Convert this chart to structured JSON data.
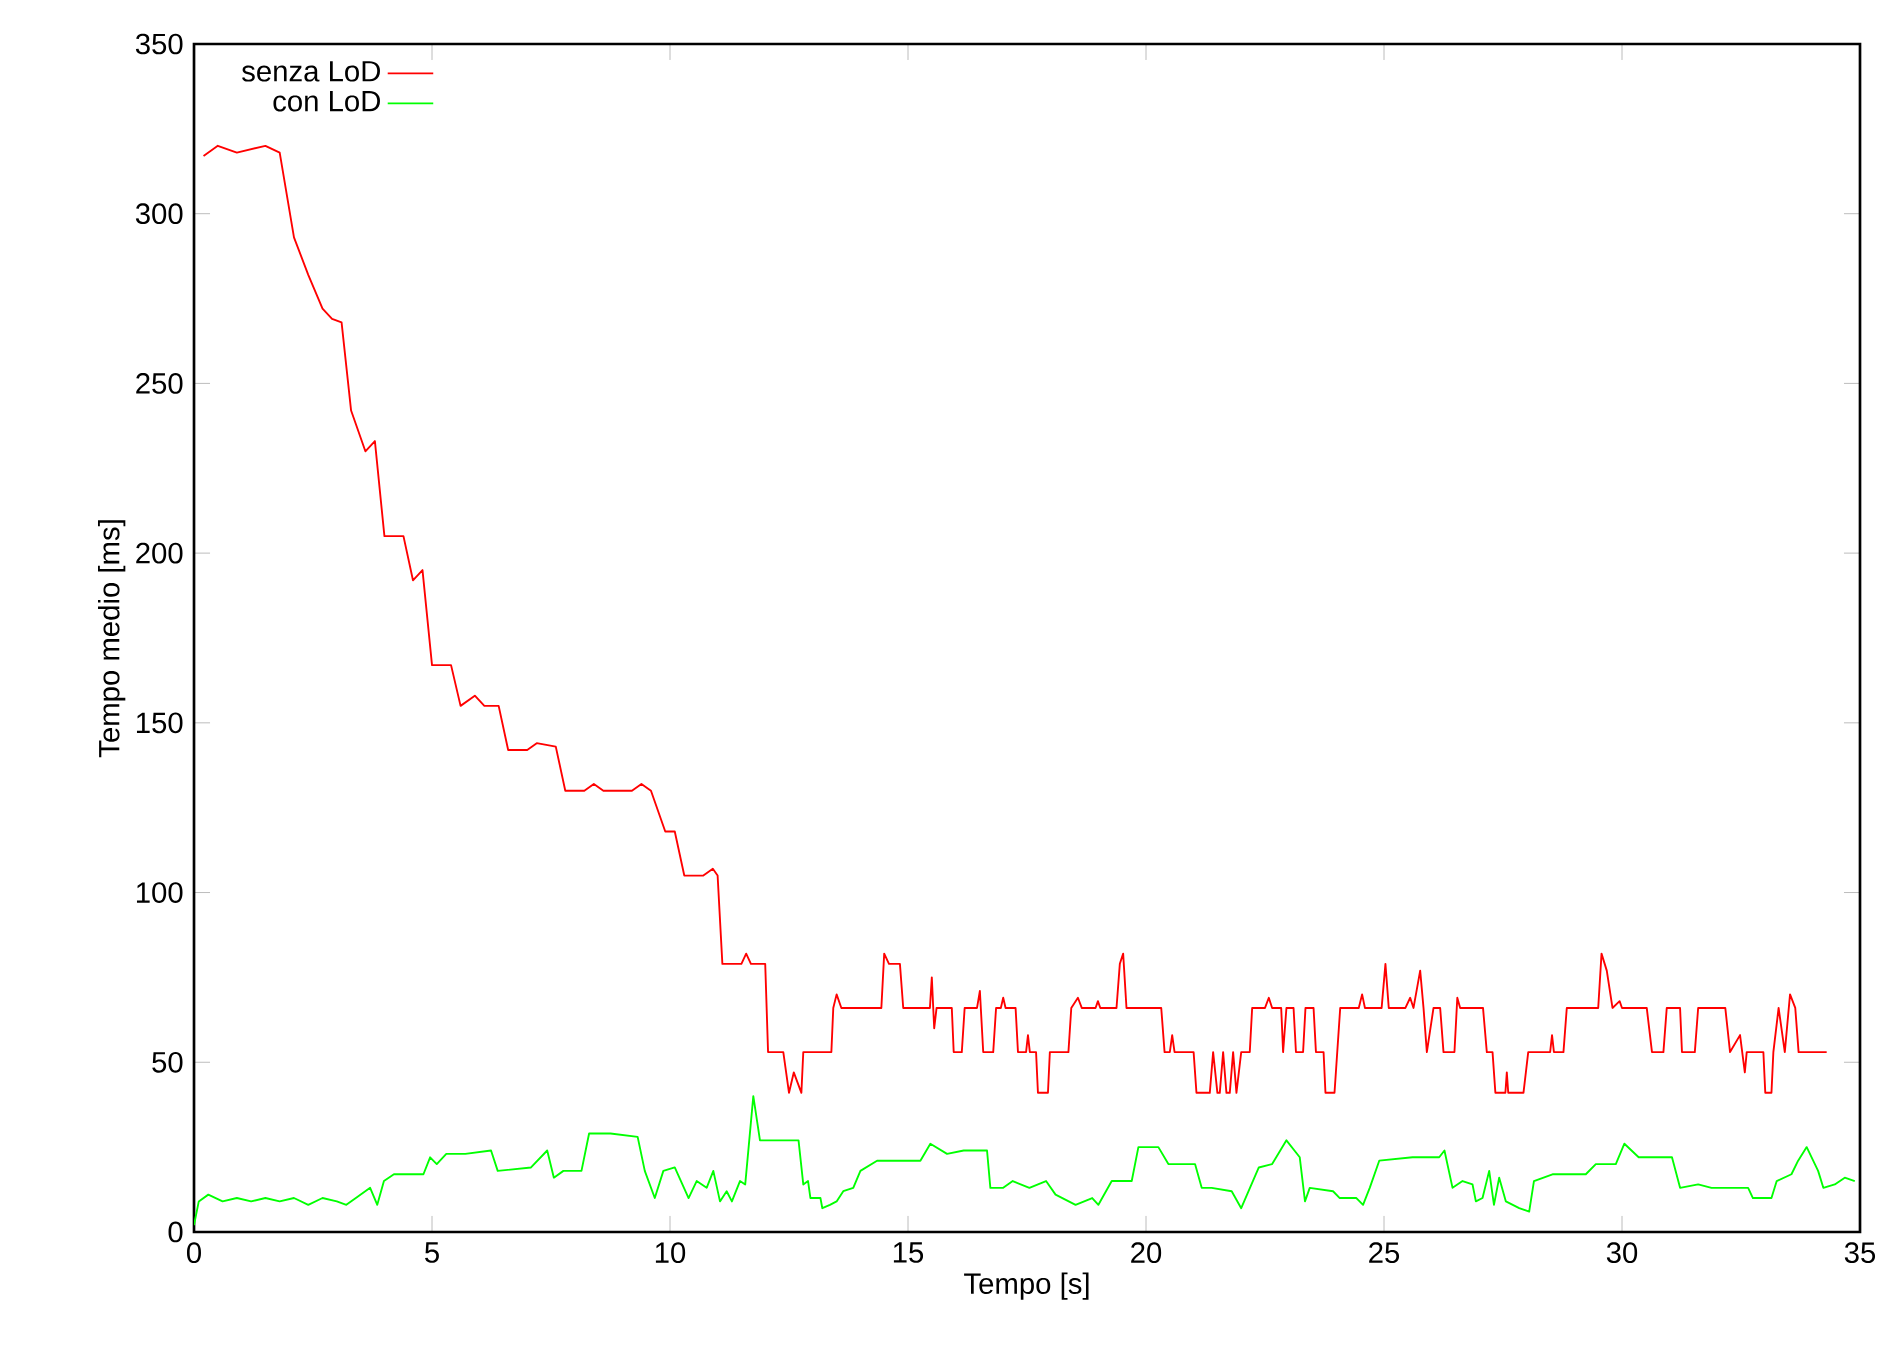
{
  "chart_data": {
    "type": "line",
    "xlabel": "Tempo [s]",
    "ylabel": "Tempo medio [ms]",
    "xlim": [
      0,
      35
    ],
    "ylim": [
      0,
      350
    ],
    "xticks": [
      0,
      5,
      10,
      15,
      20,
      25,
      30,
      35
    ],
    "yticks": [
      0,
      50,
      100,
      150,
      200,
      250,
      300,
      350
    ],
    "legend": "top left",
    "grid": false,
    "line_style": "solid",
    "marker": "none",
    "series": [
      {
        "name": "senza LoD",
        "color": "#ff0000",
        "x": [
          0.2,
          0.5,
          0.9,
          1.5,
          1.8,
          2.1,
          2.4,
          2.7,
          2.9,
          3.1,
          3.3,
          3.6,
          3.8,
          4.0,
          4.4,
          4.6,
          4.8,
          5.0,
          5.4,
          5.6,
          5.9,
          6.1,
          6.4,
          6.6,
          7.0,
          7.2,
          7.6,
          7.8,
          8.2,
          8.4,
          8.6,
          9.2,
          9.4,
          9.6,
          9.9,
          10.1,
          10.3,
          10.7,
          10.9,
          11.0,
          11.1,
          11.5,
          11.6,
          11.7,
          12.0,
          12.06,
          12.38,
          12.5,
          12.6,
          12.76,
          12.8,
          13.39,
          13.43,
          13.5,
          13.6,
          14.44,
          14.5,
          14.6,
          14.83,
          14.9,
          15.46,
          15.5,
          15.55,
          15.6,
          15.92,
          15.96,
          16.13,
          16.19,
          16.45,
          16.51,
          16.58,
          16.79,
          16.85,
          16.95,
          17.0,
          17.05,
          17.26,
          17.31,
          17.48,
          17.52,
          17.56,
          17.69,
          17.73,
          17.94,
          17.98,
          18.37,
          18.43,
          18.57,
          18.65,
          18.94,
          18.99,
          19.04,
          19.38,
          19.45,
          19.52,
          19.59,
          20.32,
          20.39,
          20.5,
          20.55,
          20.6,
          21.0,
          21.06,
          21.34,
          21.41,
          21.5,
          21.55,
          21.62,
          21.69,
          21.76,
          21.83,
          21.9,
          22.0,
          22.18,
          22.23,
          22.5,
          22.58,
          22.65,
          22.84,
          22.88,
          22.95,
          23.1,
          23.15,
          23.3,
          23.35,
          23.52,
          23.57,
          23.73,
          23.77,
          23.96,
          24.08,
          24.47,
          24.54,
          24.6,
          24.95,
          25.03,
          25.1,
          25.45,
          25.55,
          25.62,
          25.76,
          25.83,
          25.9,
          26.04,
          26.18,
          26.25,
          26.48,
          26.54,
          26.6,
          27.08,
          27.16,
          27.28,
          27.34,
          27.55,
          27.58,
          27.61,
          27.93,
          28.03,
          28.49,
          28.53,
          28.57,
          28.77,
          28.84,
          29.5,
          29.57,
          29.68,
          29.8,
          29.95,
          30.0,
          30.52,
          30.63,
          30.87,
          30.94,
          31.22,
          31.26,
          31.53,
          31.6,
          32.17,
          32.27,
          32.48,
          32.58,
          32.62,
          32.97,
          33.01,
          33.14,
          33.18,
          33.29,
          33.42,
          33.53,
          33.64,
          33.71,
          34.3
        ],
        "values": [
          317,
          320,
          318,
          320,
          318,
          293,
          282,
          272,
          269,
          268,
          242,
          230,
          233,
          205,
          205,
          192,
          195,
          167,
          167,
          155,
          158,
          155,
          155,
          142,
          142,
          144,
          143,
          130,
          130,
          132,
          130,
          130,
          132,
          130,
          118,
          118,
          105,
          105,
          107,
          105,
          79,
          79,
          82,
          79,
          79,
          53,
          53,
          41,
          47,
          41,
          53,
          53,
          66,
          70,
          66,
          66,
          82,
          79,
          79,
          66,
          66,
          75,
          60,
          66,
          66,
          53,
          53,
          66,
          66,
          71,
          53,
          53,
          66,
          66,
          69,
          66,
          66,
          53,
          53,
          58,
          53,
          53,
          41,
          41,
          53,
          53,
          66,
          69,
          66,
          66,
          68,
          66,
          66,
          79,
          82,
          66,
          66,
          53,
          53,
          58,
          53,
          53,
          41,
          41,
          53,
          41,
          41,
          53,
          41,
          41,
          53,
          41,
          53,
          53,
          66,
          66,
          69,
          66,
          66,
          53,
          66,
          66,
          53,
          53,
          66,
          66,
          53,
          53,
          41,
          41,
          66,
          66,
          70,
          66,
          66,
          79,
          66,
          66,
          69,
          66,
          77,
          66,
          53,
          66,
          66,
          53,
          53,
          69,
          66,
          66,
          53,
          53,
          41,
          41,
          47,
          41,
          41,
          53,
          53,
          58,
          53,
          53,
          66,
          66,
          82,
          77,
          66,
          68,
          66,
          66,
          53,
          53,
          66,
          66,
          53,
          53,
          66,
          66,
          53,
          58,
          47,
          53,
          53,
          41,
          41,
          53,
          66,
          53,
          70,
          66,
          53,
          53
        ]
      },
      {
        "name": "con LoD",
        "color": "#00ff00",
        "x": [
          0.0,
          0.1,
          0.3,
          0.6,
          0.9,
          1.2,
          1.5,
          1.8,
          2.1,
          2.4,
          2.7,
          3.0,
          3.2,
          3.4,
          3.7,
          3.85,
          3.99,
          4.2,
          4.82,
          4.96,
          5.1,
          5.3,
          5.7,
          6.24,
          6.38,
          7.08,
          7.42,
          7.56,
          7.76,
          8.14,
          8.3,
          8.75,
          9.32,
          9.47,
          9.68,
          9.86,
          10.1,
          10.39,
          10.56,
          10.77,
          10.91,
          11.05,
          11.19,
          11.3,
          11.47,
          11.58,
          11.75,
          11.89,
          12.2,
          12.7,
          12.8,
          12.9,
          12.95,
          13.16,
          13.2,
          13.36,
          13.5,
          13.64,
          13.85,
          14.0,
          14.35,
          15.26,
          15.47,
          15.82,
          16.17,
          16.66,
          16.73,
          17.0,
          17.2,
          17.55,
          17.9,
          18.1,
          18.52,
          18.87,
          19.0,
          19.28,
          19.7,
          19.84,
          20.26,
          20.47,
          21.03,
          21.17,
          21.38,
          21.8,
          22.0,
          22.37,
          22.65,
          22.95,
          23.23,
          23.34,
          23.44,
          23.93,
          24.07,
          24.42,
          24.56,
          24.7,
          24.9,
          25.6,
          26.16,
          26.27,
          26.44,
          26.65,
          26.86,
          26.93,
          27.07,
          27.21,
          27.31,
          27.42,
          27.56,
          27.84,
          28.05,
          28.15,
          28.54,
          29.24,
          29.45,
          29.87,
          30.05,
          30.35,
          31.05,
          31.22,
          31.6,
          31.88,
          32.65,
          32.75,
          33.14,
          33.25,
          33.56,
          33.7,
          33.88,
          34.12,
          34.23,
          34.47,
          34.68,
          34.89
        ],
        "values": [
          2,
          9,
          11,
          9,
          10,
          9,
          10,
          9,
          10,
          8,
          10,
          9,
          8,
          10,
          13,
          8,
          15,
          17,
          17,
          22,
          20,
          23,
          23,
          24,
          18,
          19,
          24,
          16,
          18,
          18,
          29,
          29,
          28,
          18,
          10,
          18,
          19,
          10,
          15,
          13,
          18,
          9,
          12,
          9,
          15,
          14,
          40,
          27,
          27,
          27,
          14,
          15,
          10,
          10,
          7,
          8,
          9,
          12,
          13,
          18,
          21,
          21,
          26,
          23,
          24,
          24,
          13,
          13,
          15,
          13,
          15,
          11,
          8,
          10,
          8,
          15,
          15,
          25,
          25,
          20,
          20,
          13,
          13,
          12,
          7,
          19,
          20,
          27,
          22,
          9,
          13,
          12,
          10,
          10,
          8,
          13,
          21,
          22,
          22,
          24,
          13,
          15,
          14,
          9,
          10,
          18,
          8,
          16,
          9,
          7,
          6,
          15,
          17,
          17,
          20,
          20,
          26,
          22,
          22,
          13,
          14,
          13,
          13,
          10,
          10,
          15,
          17,
          21,
          25,
          18,
          13,
          14,
          16,
          15
        ]
      }
    ]
  }
}
